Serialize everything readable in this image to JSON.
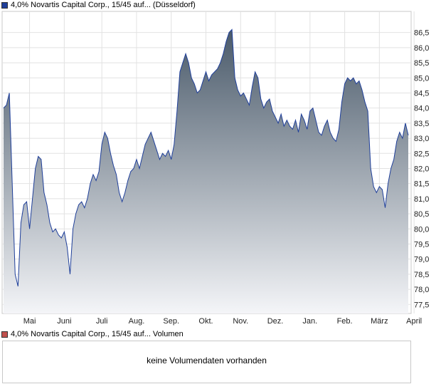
{
  "price_legend": {
    "label": "4,0% Novartis Capital Corp., 15/45 auf... (Düsseldorf)",
    "color": "#1f3f9a"
  },
  "volume_legend": {
    "label": "4,0% Novartis Capital Corp., 15/45 auf... Volumen",
    "color": "#c0504d"
  },
  "volume_panel": {
    "message": "keine Volumendaten vorhanden"
  },
  "chart_data": {
    "type": "area",
    "title": "",
    "ylim": [
      77.2,
      87.2
    ],
    "y_ticks": [
      "77,5",
      "78,0",
      "78,5",
      "79,0",
      "79,5",
      "80,0",
      "80,5",
      "81,0",
      "81,5",
      "82,0",
      "82,5",
      "83,0",
      "83,5",
      "84,0",
      "84,5",
      "85,0",
      "85,5",
      "86,0",
      "86,5"
    ],
    "y_tick_values": [
      77.5,
      78.0,
      78.5,
      79.0,
      79.5,
      80.0,
      80.5,
      81.0,
      81.5,
      82.0,
      82.5,
      83.0,
      83.5,
      84.0,
      84.5,
      85.0,
      85.5,
      86.0,
      86.5
    ],
    "x_ticks": [
      "Mai",
      "Juni",
      "Juli",
      "Aug.",
      "Sep.",
      "Okt.",
      "Nov.",
      "Dez.",
      "Jan.",
      "Feb.",
      "März",
      "April"
    ],
    "x_tick_index": [
      9,
      21,
      34,
      46,
      58,
      70,
      82,
      94,
      106,
      118,
      130,
      142
    ],
    "grid": true,
    "line_color": "#1f3f9a",
    "series": [
      {
        "values": [
          84.0,
          84.1,
          84.5,
          81.5,
          78.5,
          78.1,
          80.2,
          80.8,
          80.9,
          80.0,
          81.0,
          82.0,
          82.4,
          82.3,
          81.2,
          80.8,
          80.2,
          79.9,
          80.0,
          79.8,
          79.7,
          79.9,
          79.4,
          78.5,
          80.0,
          80.5,
          80.8,
          80.9,
          80.7,
          81.0,
          81.5,
          81.8,
          81.6,
          81.9,
          82.8,
          83.2,
          83.0,
          82.5,
          82.1,
          81.8,
          81.2,
          80.9,
          81.2,
          81.6,
          81.9,
          82.0,
          82.3,
          82.0,
          82.4,
          82.8,
          83.0,
          83.2,
          82.9,
          82.6,
          82.3,
          82.5,
          82.4,
          82.6,
          82.3,
          82.8,
          83.9,
          85.2,
          85.5,
          85.8,
          85.5,
          85.0,
          84.8,
          84.5,
          84.6,
          84.9,
          85.2,
          84.9,
          85.1,
          85.2,
          85.3,
          85.5,
          85.8,
          86.2,
          86.5,
          86.6,
          85.0,
          84.6,
          84.4,
          84.5,
          84.3,
          84.1,
          84.7,
          85.2,
          85.0,
          84.3,
          84.0,
          84.2,
          84.3,
          83.9,
          83.7,
          83.5,
          83.8,
          83.4,
          83.6,
          83.4,
          83.3,
          83.6,
          83.2,
          83.8,
          83.6,
          83.3,
          83.9,
          84.0,
          83.6,
          83.2,
          83.1,
          83.4,
          83.6,
          83.2,
          83.0,
          82.9,
          83.3,
          84.2,
          84.8,
          85.0,
          84.9,
          85.0,
          84.8,
          84.9,
          84.6,
          84.2,
          83.9,
          82.0,
          81.4,
          81.2,
          81.4,
          81.3,
          80.7,
          81.5,
          82.0,
          82.3,
          82.9,
          83.2,
          83.0,
          83.5,
          83.1
        ]
      }
    ]
  }
}
